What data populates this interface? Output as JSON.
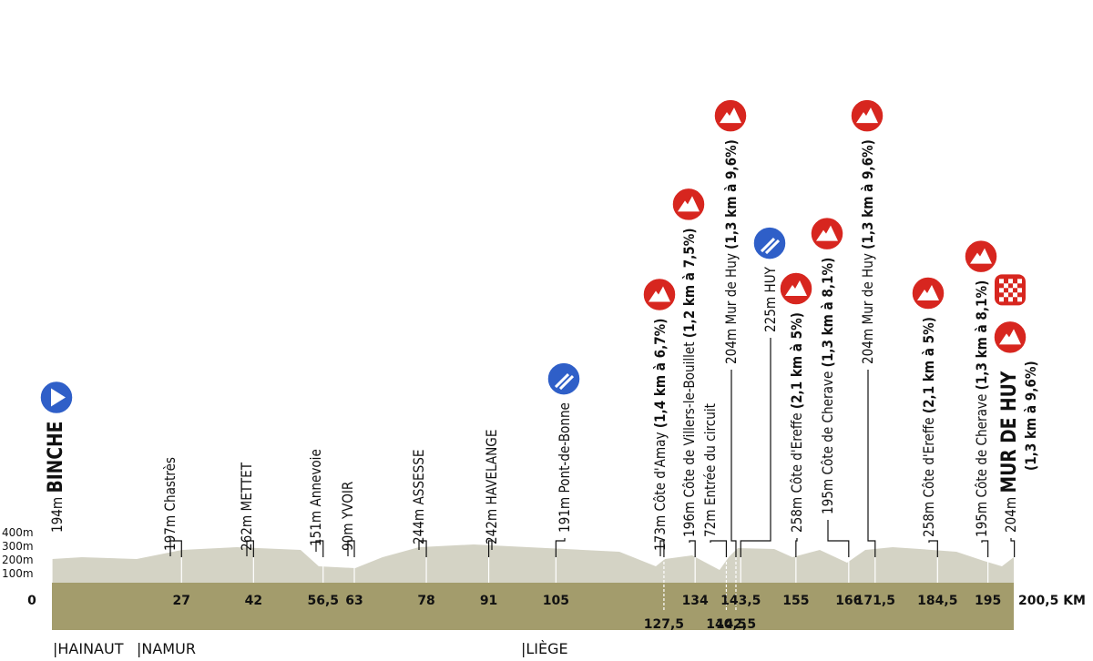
{
  "altitude_ticks": [
    "400m",
    "300m",
    "200m",
    "100m"
  ],
  "regions": [
    "|HAINAUT",
    "|NAMUR",
    "|LIÈGE"
  ],
  "waypoints": [
    {
      "altitude": "194m",
      "name": "BINCHE",
      "km": {
        "value": 0,
        "label": "0"
      },
      "icons": [
        "start"
      ]
    },
    {
      "altitude": "197m",
      "name": "Chastrès",
      "km": 27
    },
    {
      "altitude": "262m",
      "name": "METTET",
      "km": 42
    },
    {
      "altitude": "151m",
      "name": "Annevoie",
      "km": {
        "value": 56.5,
        "label": "56,5"
      }
    },
    {
      "altitude": "90m",
      "name": "YVOIR",
      "km": 63
    },
    {
      "altitude": "244m",
      "name": "ASSESSE",
      "km": 78
    },
    {
      "altitude": "242m",
      "name": "HAVELANGE",
      "km": 91
    },
    {
      "altitude": "191m",
      "name": "Pont-de-Bonne",
      "km": 105,
      "icons": [
        "feed"
      ]
    },
    {
      "altitude": "173m",
      "name": "Côte d'Amay",
      "climb": "(1,4 km à 6,7%)",
      "km": {
        "value": 127.5,
        "label": "127,5"
      },
      "icons": [
        "climb"
      ]
    },
    {
      "altitude": "196m",
      "name": "Côte de Villers-le-Bouillet",
      "climb": "(1,2 km à 7,5%)",
      "km": 134,
      "icons": [
        "climb"
      ]
    },
    {
      "altitude": "72m",
      "name": "Entrée du circuit",
      "km": {
        "value": 140.5,
        "label": "140,5"
      }
    },
    {
      "altitude": "204m",
      "name": "Mur de Huy",
      "climb": "(1,3 km à 9,6%)",
      "km": {
        "value": 142.5,
        "label": "142,5"
      },
      "icons": [
        "climb"
      ]
    },
    {
      "altitude": "225m",
      "name": "HUY",
      "km": {
        "value": 143.5,
        "label": "143,5"
      },
      "icons": [
        "feed"
      ]
    },
    {
      "altitude": "258m",
      "name": "Côte d'Ereffe",
      "climb": "(2,1 km à 5%)",
      "km": 155,
      "icons": [
        "climb"
      ]
    },
    {
      "altitude": "195m",
      "name": "Côte de Cherave",
      "climb": "(1,3 km à 8,1%)",
      "km": 166,
      "icons": [
        "climb"
      ]
    },
    {
      "altitude": "204m",
      "name": "Mur de Huy",
      "climb": "(1,3 km à 9,6%)",
      "km": {
        "value": 171.5,
        "label": "171,5"
      },
      "icons": [
        "climb"
      ]
    },
    {
      "altitude": "258m",
      "name": "Côte d'Ereffe",
      "climb": "(2,1 km à 5%)",
      "km": {
        "value": 184.5,
        "label": "184,5"
      },
      "icons": [
        "climb"
      ]
    },
    {
      "altitude": "195m",
      "name": "Côte de Cherave",
      "climb": "(1,3 km à 8,1%)",
      "km": 195,
      "icons": [
        "climb"
      ]
    },
    {
      "altitude": "204m",
      "name": "MUR DE HUY",
      "climb": "(1,3 km à 9,6%)",
      "km": {
        "value": 200.5,
        "label": "200,5 KM"
      },
      "icons": [
        "finish",
        "climb"
      ]
    }
  ]
}
